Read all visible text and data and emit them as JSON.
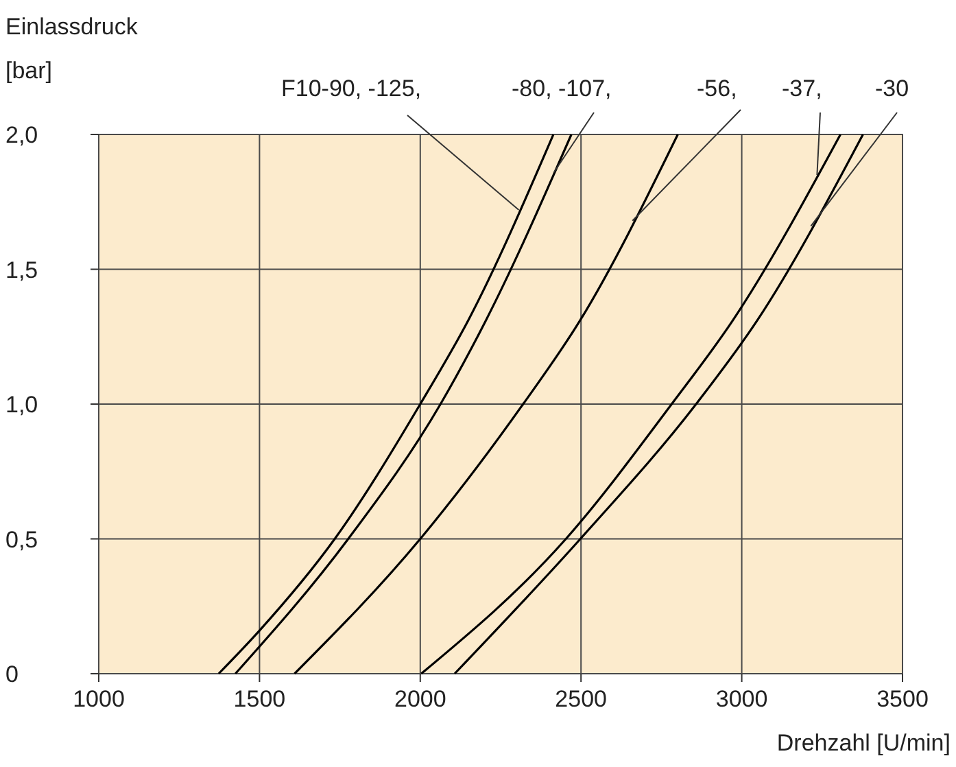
{
  "chart_data": {
    "type": "line",
    "xlabel": "Drehzahl [U/min]",
    "ylabel": "Einlassdruck [bar]",
    "xlim": [
      1000,
      3500
    ],
    "xticks": [
      1000,
      1500,
      2000,
      2500,
      3000,
      3500
    ],
    "ylim": [
      0,
      2
    ],
    "yticks": [
      0,
      {
        "value": 0.5,
        "label": "0,5"
      },
      {
        "value": 1,
        "label": "1,0"
      },
      {
        "value": 1.5,
        "label": "1,5"
      },
      {
        "value": 2,
        "label": "2,0"
      }
    ],
    "grid": true,
    "marker": "none",
    "line_style": "solid",
    "series": [
      {
        "name": "F10-90, -125,",
        "color": "#000000",
        "x": [
          1373,
          1500,
          1734,
          2000,
          2149,
          2414
        ],
        "values": [
          0,
          0.16,
          0.5,
          1.0,
          1.31,
          2.0
        ]
      },
      {
        "name": "-80, -107,",
        "color": "#000000",
        "x": [
          1425,
          1776,
          2063,
          2204,
          2470
        ],
        "values": [
          0,
          0.5,
          1.0,
          1.31,
          2.0
        ]
      },
      {
        "name": "-56,",
        "color": "#000000",
        "x": [
          1609,
          2000,
          2320,
          2497,
          2801
        ],
        "values": [
          0,
          0.5,
          1.0,
          1.31,
          2.0
        ]
      },
      {
        "name": "-37,",
        "color": "#000000",
        "x": [
          2003,
          2453,
          2782,
          2972,
          3307
        ],
        "values": [
          0,
          0.5,
          1.0,
          1.31,
          2.0
        ]
      },
      {
        "name": "-30",
        "color": "#000000",
        "x": [
          2107,
          2498,
          2858,
          3048,
          3377
        ],
        "values": [
          0,
          0.5,
          1.0,
          1.31,
          2.0
        ]
      }
    ]
  }
}
